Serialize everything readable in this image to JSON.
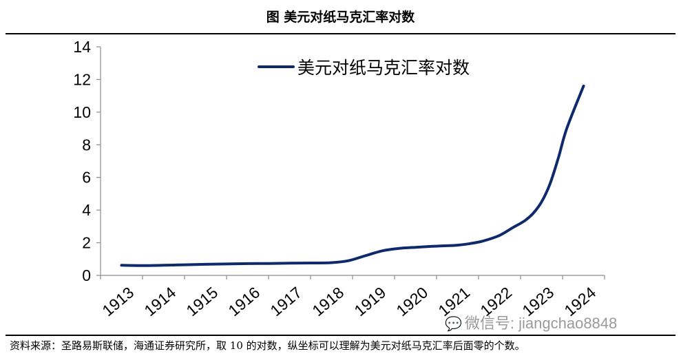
{
  "figure_title": "图  美元对纸马克汇率对数",
  "source_note": "资料来源：圣路易斯联储，海通证券研究所，取 10 的对数，纵坐标可以理解为美元对纸马克汇率后面零的个数。",
  "watermark": "微信号: jiangchao8848",
  "watermark_icon": "wechat-icon",
  "chart_data": {
    "type": "line",
    "title": "",
    "xlabel": "",
    "ylabel": "",
    "categories": [
      "1913",
      "1914",
      "1915",
      "1916",
      "1917",
      "1918",
      "1919",
      "1920",
      "1921",
      "1922",
      "1923",
      "1924"
    ],
    "ylim": [
      0,
      14
    ],
    "yticks": [
      "0",
      "2",
      "4",
      "6",
      "8",
      "10",
      "12",
      "14"
    ],
    "grid": false,
    "legend": "top-center",
    "line_color": "#0f2a6b",
    "series": [
      {
        "name": "美元对纸马克汇率对数",
        "x": [
          1913.0,
          1913.5,
          1914.0,
          1914.5,
          1915.0,
          1915.5,
          1916.0,
          1916.5,
          1917.0,
          1917.5,
          1918.0,
          1918.4,
          1918.8,
          1919.2,
          1919.6,
          1920.0,
          1920.4,
          1920.8,
          1921.0,
          1921.3,
          1921.6,
          1922.0,
          1922.3,
          1922.6,
          1922.8,
          1923.0,
          1923.2,
          1923.4,
          1923.6,
          1924.0
        ],
        "values": [
          0.62,
          0.6,
          0.62,
          0.65,
          0.68,
          0.7,
          0.72,
          0.73,
          0.75,
          0.76,
          0.78,
          0.9,
          1.2,
          1.5,
          1.65,
          1.72,
          1.78,
          1.82,
          1.85,
          1.95,
          2.1,
          2.45,
          2.9,
          3.35,
          3.8,
          4.5,
          5.6,
          7.2,
          9.0,
          11.6
        ]
      }
    ]
  }
}
